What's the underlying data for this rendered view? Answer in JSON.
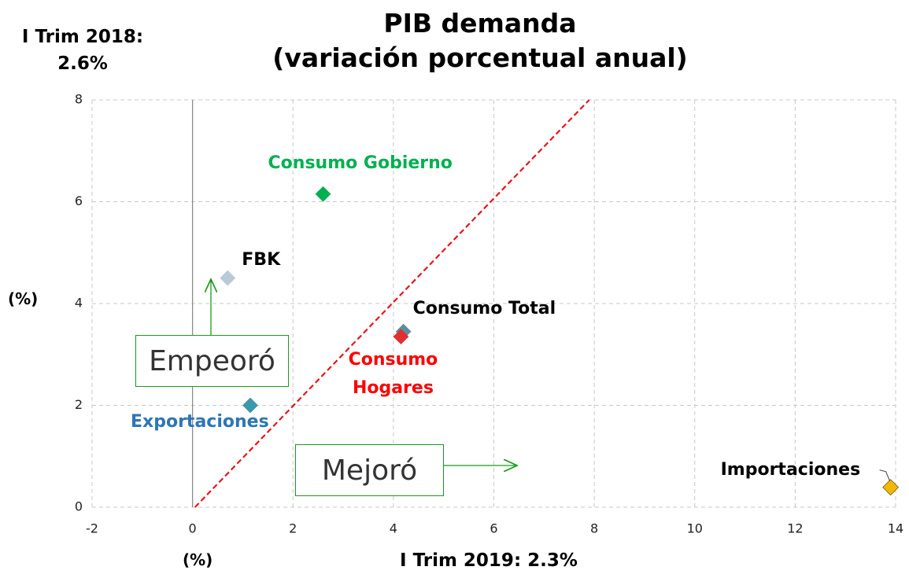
{
  "chart_data": {
    "type": "scatter",
    "title": [
      "PIB demanda",
      "(variación porcentual anual)"
    ],
    "y_label_title": [
      "I Trim 2018:",
      "2.6%"
    ],
    "y_label": "(%)",
    "x_label_left": "(%)",
    "x_label": "I Trim 2019: 2.3%",
    "annotations": [
      "Empeoró",
      "Mejoró"
    ],
    "xlim": [
      -2,
      14
    ],
    "xticks": [
      -2,
      0,
      2,
      4,
      6,
      8,
      10,
      12,
      14
    ],
    "ylim": [
      0,
      8
    ],
    "yticks": [
      0,
      2,
      4,
      6,
      8
    ],
    "grid": true,
    "reference_line": {
      "x": [
        0.05,
        7.9
      ],
      "y": [
        0,
        8
      ],
      "color": "#e8141c"
    },
    "series": [
      {
        "name": "Consumo Gobierno",
        "color": "#00b050",
        "label_color": "#00b050",
        "x": [
          2.6
        ],
        "values": [
          6.15
        ]
      },
      {
        "name": "FBK",
        "color": "#b8cad8",
        "label_color": "#000000",
        "x": [
          0.7
        ],
        "values": [
          4.5
        ]
      },
      {
        "name": "Consumo Total",
        "color": "#5a8f9c",
        "label_color": "#000000",
        "x": [
          4.2
        ],
        "values": [
          3.45
        ]
      },
      {
        "name": "Consumo Hogares",
        "color": "#e03030",
        "label_color": "#ff0000",
        "x": [
          4.15
        ],
        "values": [
          3.35
        ]
      },
      {
        "name": "Exportaciones",
        "color": "#3a97ac",
        "label_color": "#2e75b6",
        "x": [
          1.15
        ],
        "values": [
          2.0
        ]
      },
      {
        "name": "Importaciones",
        "color": "#f5b800",
        "label_color": "#000000",
        "x": [
          13.9
        ],
        "values": [
          0.39
        ]
      }
    ]
  }
}
